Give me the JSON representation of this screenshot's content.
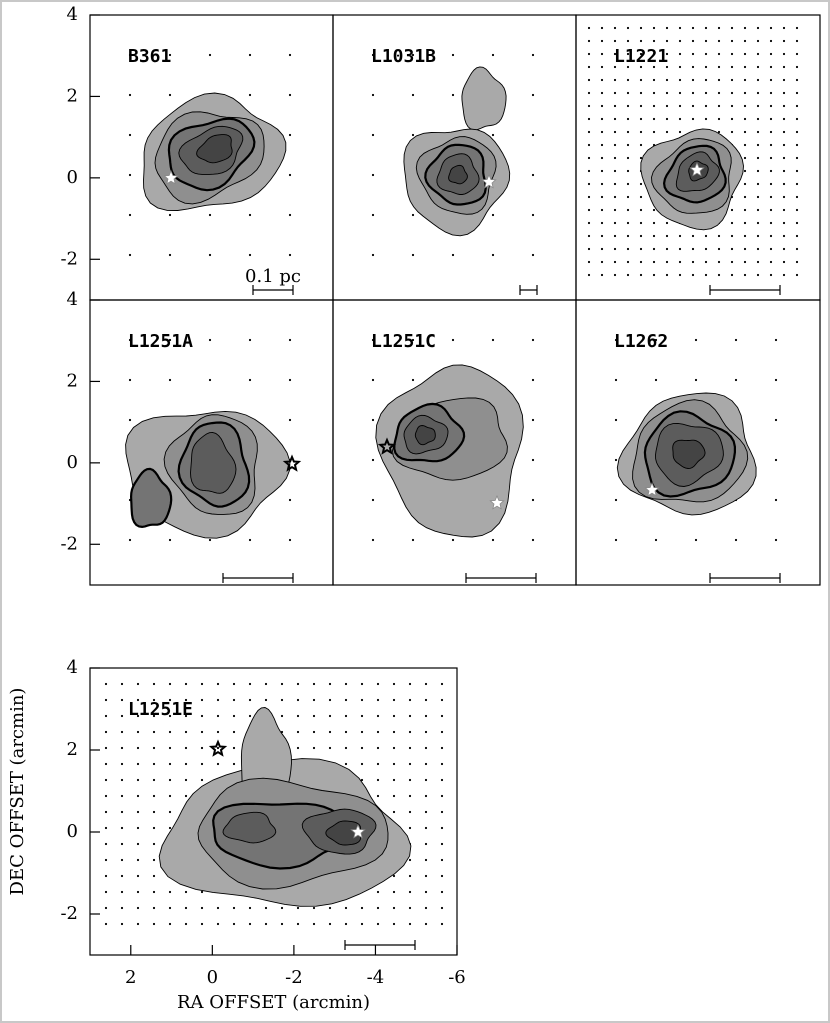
{
  "chart_data": [
    {
      "type": "contour",
      "title": "B361",
      "ylim": [
        -3,
        4
      ],
      "yticks": [
        4,
        2,
        0,
        -2
      ],
      "scale_bar_label": "0.1 pc"
    },
    {
      "type": "contour",
      "title": "L1031B"
    },
    {
      "type": "contour",
      "title": "L1221"
    },
    {
      "type": "contour",
      "title": "L1251A",
      "ylim": [
        -3,
        4
      ],
      "yticks": [
        4,
        2,
        0,
        -2
      ]
    },
    {
      "type": "contour",
      "title": "L1251C"
    },
    {
      "type": "contour",
      "title": "L1262"
    },
    {
      "type": "contour",
      "title": "L1251E",
      "xlim": [
        3,
        -6
      ],
      "xticks": [
        2,
        0,
        -2,
        -4,
        -6
      ],
      "ylim": [
        -3,
        4
      ],
      "yticks": [
        4,
        2,
        0,
        -2
      ],
      "xlabel": "RA OFFSET (arcmin)",
      "ylabel": "DEC OFFSET (arcmin)"
    }
  ]
}
